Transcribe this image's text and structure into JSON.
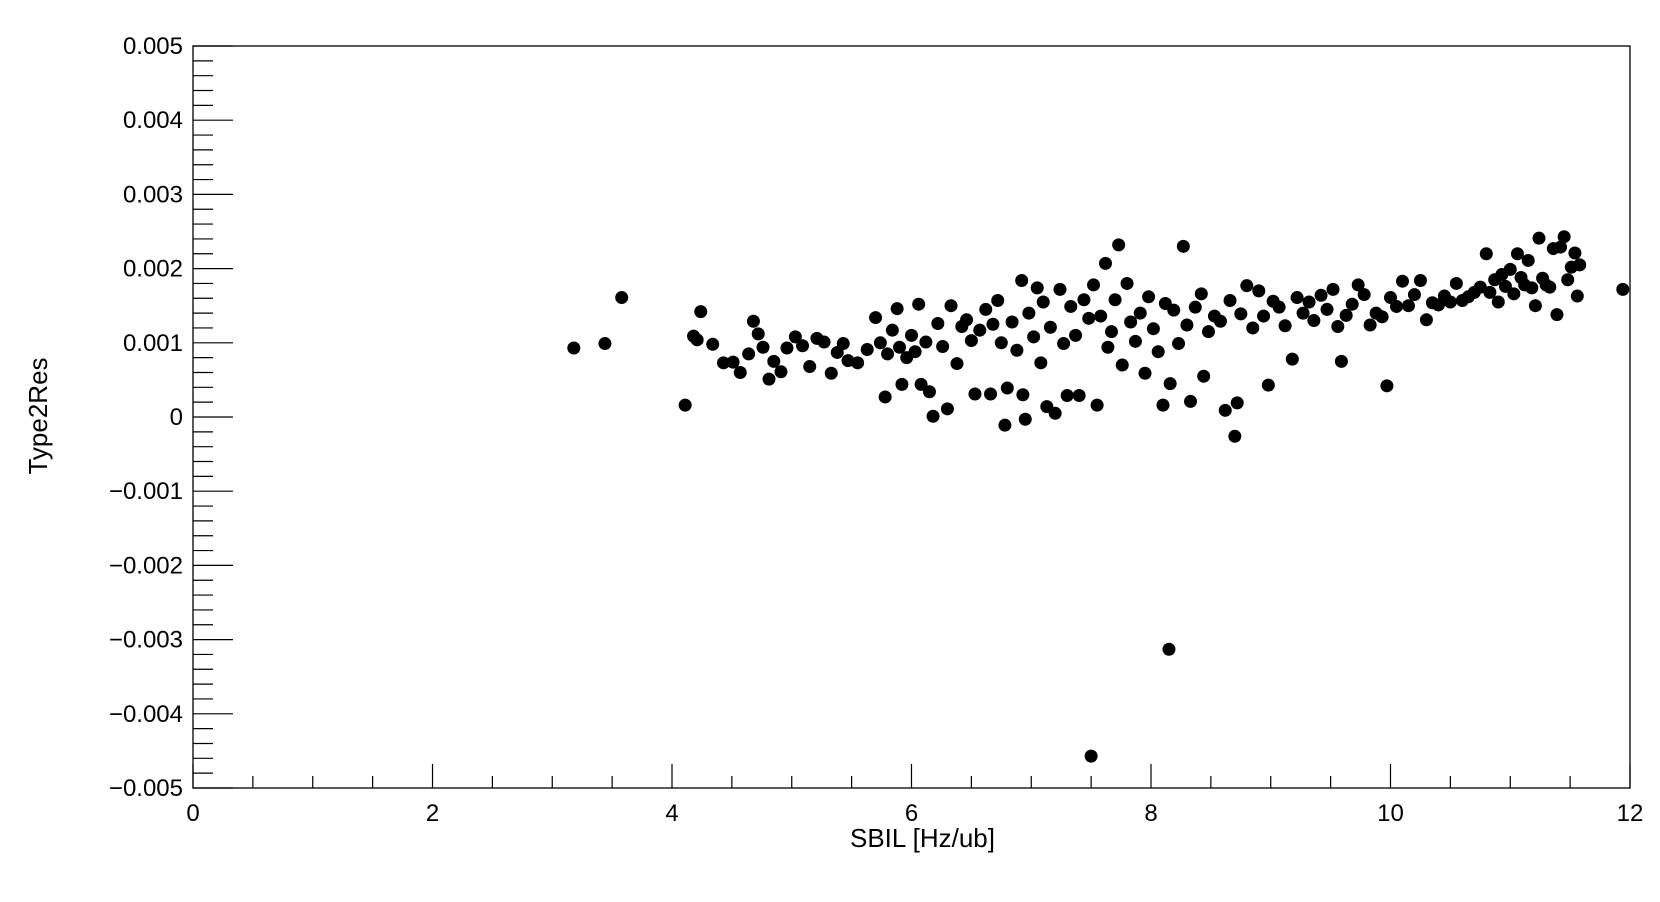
{
  "chart_data": {
    "type": "scatter",
    "title": "",
    "xlabel": "SBIL [Hz/ub]",
    "ylabel": "Type2Res",
    "xlim": [
      0,
      12
    ],
    "ylim": [
      -0.005,
      0.005
    ],
    "x_ticks": [
      0,
      2,
      4,
      6,
      8,
      10,
      12
    ],
    "x_tick_labels": [
      "0",
      "2",
      "4",
      "6",
      "8",
      "10",
      "12"
    ],
    "y_ticks": [
      -0.005,
      -0.004,
      -0.003,
      -0.002,
      -0.001,
      0,
      0.001,
      0.002,
      0.003,
      0.004,
      0.005
    ],
    "y_tick_labels": [
      "−0.005",
      "−0.004",
      "−0.003",
      "−0.002",
      "−0.001",
      "0",
      "0.001",
      "0.002",
      "0.003",
      "0.004",
      "0.005"
    ],
    "grid": false,
    "legend": "none",
    "marker_color": "#000000",
    "series": [
      {
        "points": [
          [
            3.18,
            0.00093
          ],
          [
            3.44,
            0.00099
          ],
          [
            3.58,
            0.00161
          ],
          [
            4.11,
            0.00016
          ],
          [
            4.18,
            0.00109
          ],
          [
            4.21,
            0.00104
          ],
          [
            4.24,
            0.00142
          ],
          [
            4.34,
            0.00098
          ],
          [
            4.43,
            0.00073
          ],
          [
            4.51,
            0.00074
          ],
          [
            4.57,
            0.0006
          ],
          [
            4.64,
            0.00085
          ],
          [
            4.68,
            0.00129
          ],
          [
            4.72,
            0.00112
          ],
          [
            4.76,
            0.00094
          ],
          [
            4.81,
            0.00051
          ],
          [
            4.85,
            0.00075
          ],
          [
            4.91,
            0.00061
          ],
          [
            4.96,
            0.00093
          ],
          [
            5.03,
            0.00108
          ],
          [
            5.09,
            0.00096
          ],
          [
            5.15,
            0.00068
          ],
          [
            5.21,
            0.00106
          ],
          [
            5.27,
            0.00101
          ],
          [
            5.33,
            0.00059
          ],
          [
            5.38,
            0.00087
          ],
          [
            5.43,
            0.00099
          ],
          [
            5.47,
            0.00076
          ],
          [
            5.55,
            0.00073
          ],
          [
            5.63,
            0.00091
          ],
          [
            5.7,
            0.00134
          ],
          [
            5.74,
            0.001
          ],
          [
            5.78,
            0.00027
          ],
          [
            5.8,
            0.00085
          ],
          [
            5.84,
            0.00117
          ],
          [
            5.88,
            0.00146
          ],
          [
            5.9,
            0.00094
          ],
          [
            5.92,
            0.00044
          ],
          [
            5.96,
            0.0008
          ],
          [
            6.0,
            0.0011
          ],
          [
            6.03,
            0.00088
          ],
          [
            6.06,
            0.00152
          ],
          [
            6.08,
            0.00044
          ],
          [
            6.12,
            0.00101
          ],
          [
            6.15,
            0.00034
          ],
          [
            6.18,
            1e-05
          ],
          [
            6.22,
            0.00126
          ],
          [
            6.26,
            0.00095
          ],
          [
            6.3,
            0.00011
          ],
          [
            6.33,
            0.0015
          ],
          [
            6.38,
            0.00072
          ],
          [
            6.42,
            0.00122
          ],
          [
            6.46,
            0.00131
          ],
          [
            6.5,
            0.00103
          ],
          [
            6.53,
            0.00031
          ],
          [
            6.57,
            0.00117
          ],
          [
            6.62,
            0.00145
          ],
          [
            6.66,
            0.00031
          ],
          [
            6.68,
            0.00125
          ],
          [
            6.72,
            0.00157
          ],
          [
            6.75,
            0.001
          ],
          [
            6.78,
            -0.00011
          ],
          [
            6.8,
            0.00039
          ],
          [
            6.84,
            0.00128
          ],
          [
            6.88,
            0.0009
          ],
          [
            6.92,
            0.00184
          ],
          [
            6.93,
            0.0003
          ],
          [
            6.95,
            -3e-05
          ],
          [
            6.98,
            0.0014
          ],
          [
            7.02,
            0.00108
          ],
          [
            7.05,
            0.00174
          ],
          [
            7.08,
            0.00073
          ],
          [
            7.1,
            0.00155
          ],
          [
            7.13,
            0.00014
          ],
          [
            7.16,
            0.00121
          ],
          [
            7.2,
            5e-05
          ],
          [
            7.24,
            0.00172
          ],
          [
            7.27,
            0.00099
          ],
          [
            7.3,
            0.00029
          ],
          [
            7.33,
            0.00149
          ],
          [
            7.37,
            0.0011
          ],
          [
            7.4,
            0.00029
          ],
          [
            7.44,
            0.00158
          ],
          [
            7.48,
            0.00133
          ],
          [
            7.5,
            -0.00457
          ],
          [
            7.52,
            0.00178
          ],
          [
            7.55,
            0.00016
          ],
          [
            7.58,
            0.00136
          ],
          [
            7.62,
            0.00207
          ],
          [
            7.64,
            0.00094
          ],
          [
            7.67,
            0.00115
          ],
          [
            7.7,
            0.00158
          ],
          [
            7.73,
            0.00232
          ],
          [
            7.76,
            0.0007
          ],
          [
            7.8,
            0.0018
          ],
          [
            7.83,
            0.00128
          ],
          [
            7.87,
            0.00102
          ],
          [
            7.91,
            0.0014
          ],
          [
            7.95,
            0.00059
          ],
          [
            7.98,
            0.00162
          ],
          [
            8.02,
            0.00119
          ],
          [
            8.06,
            0.00088
          ],
          [
            8.1,
            0.00016
          ],
          [
            8.12,
            0.00153
          ],
          [
            8.15,
            -0.00313
          ],
          [
            8.16,
            0.00045
          ],
          [
            8.19,
            0.00144
          ],
          [
            8.23,
            0.00099
          ],
          [
            8.27,
            0.0023
          ],
          [
            8.3,
            0.00124
          ],
          [
            8.33,
            0.00021
          ],
          [
            8.37,
            0.00148
          ],
          [
            8.42,
            0.00166
          ],
          [
            8.44,
            0.00055
          ],
          [
            8.48,
            0.00115
          ],
          [
            8.53,
            0.00136
          ],
          [
            8.58,
            0.00129
          ],
          [
            8.62,
            9e-05
          ],
          [
            8.66,
            0.00157
          ],
          [
            8.7,
            -0.00026
          ],
          [
            8.72,
            0.00019
          ],
          [
            8.75,
            0.00139
          ],
          [
            8.8,
            0.00177
          ],
          [
            8.85,
            0.0012
          ],
          [
            8.9,
            0.0017
          ],
          [
            8.94,
            0.00136
          ],
          [
            8.98,
            0.00043
          ],
          [
            9.02,
            0.00156
          ],
          [
            9.07,
            0.00148
          ],
          [
            9.12,
            0.00123
          ],
          [
            9.18,
            0.00078
          ],
          [
            9.22,
            0.00161
          ],
          [
            9.27,
            0.0014
          ],
          [
            9.32,
            0.00155
          ],
          [
            9.36,
            0.0013
          ],
          [
            9.42,
            0.00164
          ],
          [
            9.47,
            0.00145
          ],
          [
            9.52,
            0.00172
          ],
          [
            9.56,
            0.00122
          ],
          [
            9.59,
            0.00075
          ],
          [
            9.63,
            0.00137
          ],
          [
            9.68,
            0.00152
          ],
          [
            9.73,
            0.00178
          ],
          [
            9.78,
            0.00165
          ],
          [
            9.83,
            0.00124
          ],
          [
            9.88,
            0.0014
          ],
          [
            9.93,
            0.00135
          ],
          [
            9.97,
            0.00042
          ],
          [
            10.0,
            0.00161
          ],
          [
            10.05,
            0.00149
          ],
          [
            10.1,
            0.00183
          ],
          [
            10.15,
            0.0015
          ],
          [
            10.2,
            0.00165
          ],
          [
            10.25,
            0.00184
          ],
          [
            10.3,
            0.00131
          ],
          [
            10.35,
            0.00154
          ],
          [
            10.4,
            0.00151
          ],
          [
            10.45,
            0.00163
          ],
          [
            10.5,
            0.00155
          ],
          [
            10.55,
            0.0018
          ],
          [
            10.6,
            0.00157
          ],
          [
            10.65,
            0.00162
          ],
          [
            10.7,
            0.00168
          ],
          [
            10.75,
            0.00175
          ],
          [
            10.8,
            0.0022
          ],
          [
            10.83,
            0.00168
          ],
          [
            10.87,
            0.00185
          ],
          [
            10.9,
            0.00155
          ],
          [
            10.93,
            0.00192
          ],
          [
            10.96,
            0.00176
          ],
          [
            11.0,
            0.00199
          ],
          [
            11.03,
            0.00166
          ],
          [
            11.06,
            0.0022
          ],
          [
            11.09,
            0.00188
          ],
          [
            11.12,
            0.00178
          ],
          [
            11.15,
            0.00211
          ],
          [
            11.18,
            0.00174
          ],
          [
            11.21,
            0.0015
          ],
          [
            11.24,
            0.00241
          ],
          [
            11.27,
            0.00187
          ],
          [
            11.3,
            0.00178
          ],
          [
            11.33,
            0.00175
          ],
          [
            11.36,
            0.00227
          ],
          [
            11.39,
            0.00138
          ],
          [
            11.42,
            0.00229
          ],
          [
            11.45,
            0.00243
          ],
          [
            11.48,
            0.00185
          ],
          [
            11.51,
            0.00202
          ],
          [
            11.54,
            0.00221
          ],
          [
            11.56,
            0.00163
          ],
          [
            11.58,
            0.00205
          ],
          [
            11.94,
            0.00172
          ]
        ]
      }
    ]
  }
}
